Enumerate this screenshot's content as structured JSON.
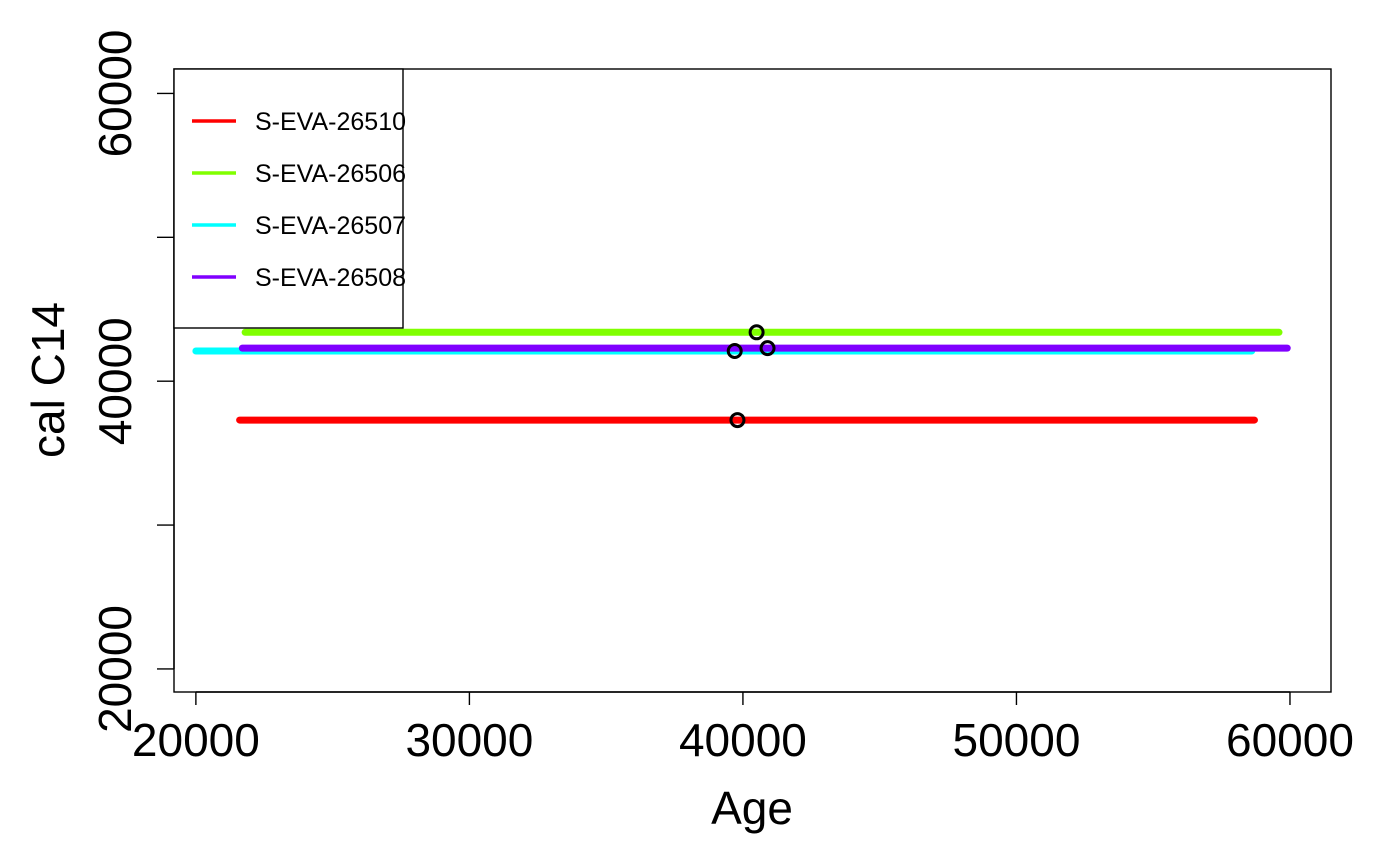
{
  "chart_data": {
    "type": "line",
    "xlabel": "Age",
    "ylabel": "cal C14",
    "xlim": [
      19200,
      61500
    ],
    "ylim": [
      18400,
      61700
    ],
    "xticks": [
      20000,
      30000,
      40000,
      50000,
      60000
    ],
    "xtick_labels": [
      "20000",
      "30000",
      "40000",
      "50000",
      "60000"
    ],
    "yticks": [
      20000,
      30000,
      40000,
      50000,
      60000
    ],
    "ytick_labels": [
      "20000",
      "",
      "40000",
      "",
      "60000"
    ],
    "grid": false,
    "legend": {
      "position": "top-left",
      "box": true
    },
    "series": [
      {
        "name": "S-EVA-26510",
        "color": "#FF0000",
        "x_range": [
          21600,
          58700
        ],
        "y": 37300,
        "point": {
          "x": 39800,
          "y": 37300
        }
      },
      {
        "name": "S-EVA-26506",
        "color": "#80FF00",
        "x_range": [
          21800,
          59600
        ],
        "y": 43400,
        "point": {
          "x": 40500,
          "y": 43400
        }
      },
      {
        "name": "S-EVA-26507",
        "color": "#00FFFF",
        "x_range": [
          20000,
          58600
        ],
        "y": 42100,
        "point": {
          "x": 39700,
          "y": 42100
        }
      },
      {
        "name": "S-EVA-26508",
        "color": "#8000FF",
        "x_range": [
          21700,
          59900
        ],
        "y": 42300,
        "point": {
          "x": 40900,
          "y": 42300
        }
      }
    ]
  }
}
